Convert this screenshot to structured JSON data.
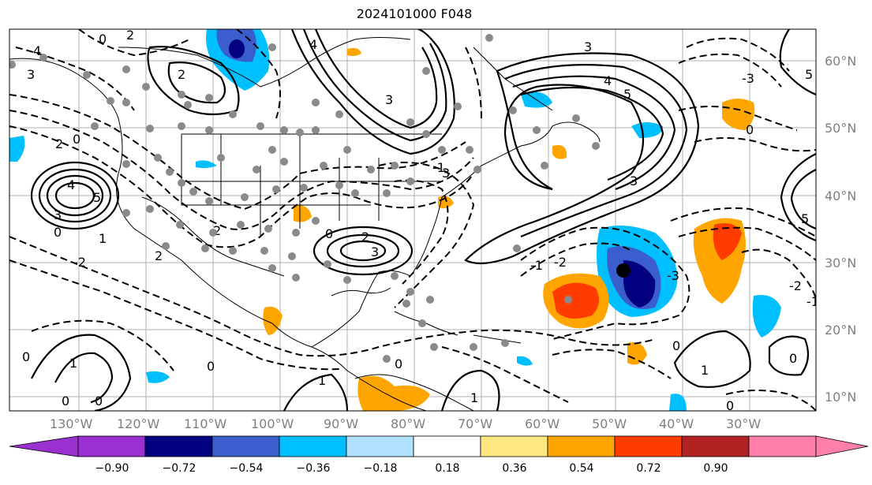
{
  "title": "2024101000 F048",
  "lat_labels": [
    "60°N",
    "50°N",
    "40°N",
    "30°N",
    "20°N",
    "10°N"
  ],
  "lon_labels": [
    "130°W",
    "120°W",
    "110°W",
    "100°W",
    "90°W",
    "80°W",
    "70°W",
    "60°W",
    "50°W",
    "40°W",
    "30°W"
  ],
  "colorbar": {
    "ticks": [
      "−0.90",
      "−0.72",
      "−0.54",
      "−0.36",
      "−0.18",
      "0.18",
      "0.36",
      "0.54",
      "0.72",
      "0.90"
    ],
    "colors": [
      "#9b30d0",
      "#000080",
      "#3a5fcd",
      "#00bfff",
      "#b0e2ff",
      "#ffffff",
      "#ffe680",
      "#ffa500",
      "#ff3c00",
      "#b22222",
      "#ff7fa8"
    ]
  },
  "contour_labels": [
    "0",
    "1",
    "2",
    "3",
    "4",
    "5",
    "-1",
    "-2",
    "-3"
  ]
}
